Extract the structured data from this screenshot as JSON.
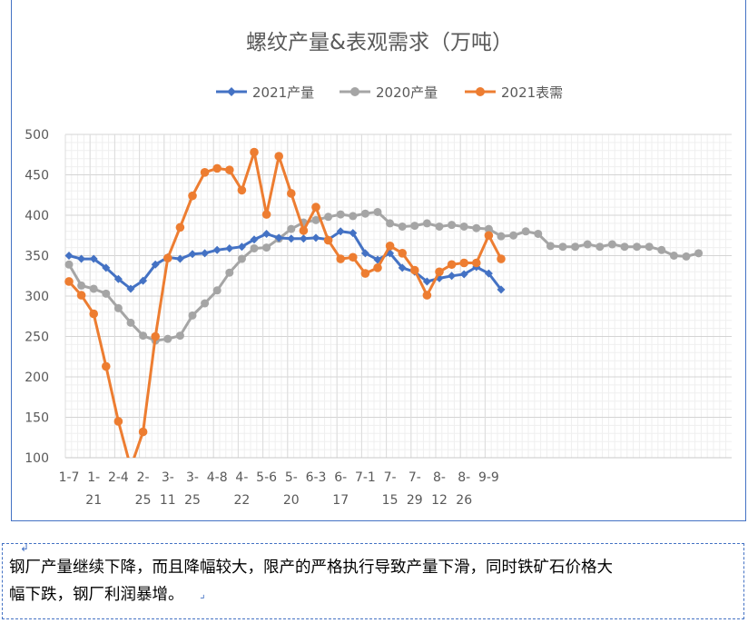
{
  "chart_data": {
    "type": "line",
    "title": "螺纹产量&表观需求（万吨）",
    "legend_position": "top",
    "grid": true,
    "ylim": [
      100,
      500
    ],
    "y_ticks": [
      "100",
      "150",
      "200",
      "250",
      "300",
      "350",
      "400",
      "450",
      "500"
    ],
    "x_tick_labels": [
      [
        "1-7",
        ""
      ],
      [
        "1-",
        "21"
      ],
      [
        "2-4",
        ""
      ],
      [
        "2-",
        "25"
      ],
      [
        "3-",
        "11"
      ],
      [
        "3-",
        "25"
      ],
      [
        "4-8",
        ""
      ],
      [
        "4-",
        "22"
      ],
      [
        "5-6",
        ""
      ],
      [
        "5-",
        "20"
      ],
      [
        "6-3",
        ""
      ],
      [
        "6-",
        "17"
      ],
      [
        "7-1",
        ""
      ],
      [
        "7-",
        "15"
      ],
      [
        "7-",
        "29"
      ],
      [
        "8-",
        "12"
      ],
      [
        "8-",
        "26"
      ],
      [
        "9-9",
        ""
      ]
    ],
    "colors": {
      "s2021": "#4472C4",
      "s2020": "#A5A5A5",
      "demand": "#ED7D31"
    },
    "series": [
      {
        "name": "2021产量",
        "color": "#4472C4",
        "values": [
          350,
          346,
          346,
          335,
          321,
          309,
          319,
          339,
          348,
          346,
          352,
          353,
          357,
          359,
          361,
          370,
          377,
          372,
          371,
          371,
          372,
          370,
          380,
          378,
          353,
          345,
          353,
          335,
          330,
          318,
          322,
          325,
          327,
          336,
          328,
          308
        ]
      },
      {
        "name": "2020产量",
        "color": "#A5A5A5",
        "values": [
          339,
          313,
          309,
          303,
          285,
          267,
          251,
          245,
          247,
          251,
          276,
          291,
          307,
          329,
          346,
          359,
          360,
          371,
          383,
          391,
          394,
          398,
          401,
          399,
          402,
          404,
          390,
          386,
          387,
          390,
          386,
          388,
          386,
          384,
          383,
          374,
          375,
          380,
          377,
          362,
          361,
          361,
          364,
          361,
          364,
          361,
          361,
          361,
          357,
          350,
          349,
          353
        ]
      },
      {
        "name": "2021表需",
        "color": "#ED7D31",
        "values": [
          318,
          301,
          278,
          213,
          145,
          88,
          132,
          250,
          347,
          385,
          424,
          453,
          458,
          456,
          431,
          478,
          401,
          473,
          427,
          381,
          410,
          369,
          346,
          348,
          328,
          335,
          362,
          353,
          332,
          301,
          330,
          339,
          341,
          341,
          375,
          346
        ]
      }
    ]
  },
  "caption": {
    "line1": "钢厂产量继续下降，而且降幅较大，限产的严格执行导致产量下滑，同时铁矿石价格大",
    "line2": "幅下跌，钢厂利润暴增。"
  }
}
